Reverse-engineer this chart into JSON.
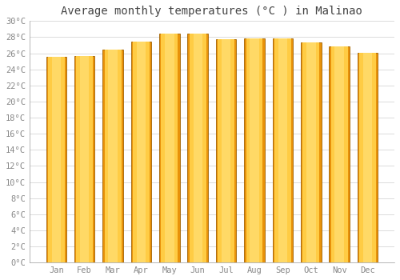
{
  "title": "Average monthly temperatures (°C ) in Malinao",
  "months": [
    "Jan",
    "Feb",
    "Mar",
    "Apr",
    "May",
    "Jun",
    "Jul",
    "Aug",
    "Sep",
    "Oct",
    "Nov",
    "Dec"
  ],
  "temperatures": [
    25.6,
    25.7,
    26.5,
    27.4,
    28.4,
    28.4,
    27.7,
    27.8,
    27.8,
    27.3,
    26.8,
    26.1
  ],
  "bar_color_outer": "#E8920A",
  "bar_color_inner": "#FFCC44",
  "bar_color_center": "#FFD966",
  "background_color": "#ffffff",
  "grid_color": "#cccccc",
  "ylim": [
    0,
    30
  ],
  "ytick_step": 2,
  "title_fontsize": 10,
  "tick_fontsize": 7.5,
  "font_family": "monospace",
  "title_color": "#444444",
  "tick_color": "#888888"
}
